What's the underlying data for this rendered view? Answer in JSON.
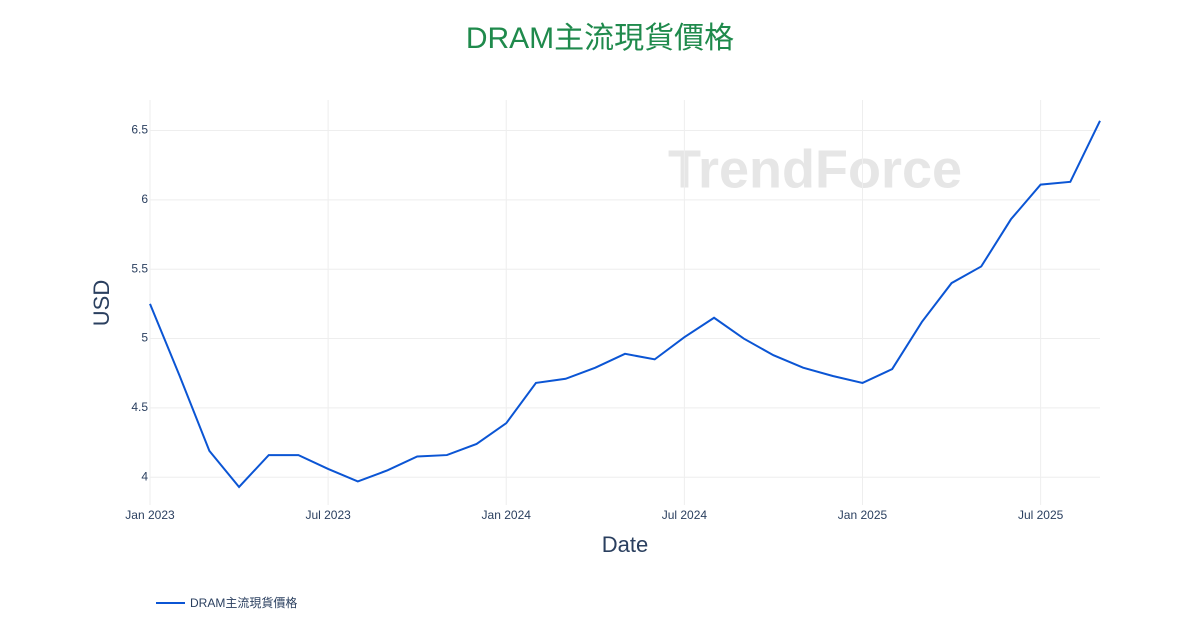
{
  "chart_data": {
    "type": "line",
    "title": "DRAM主流現貨價格",
    "watermark": "TrendForce",
    "x_label": "Date",
    "y_label": "USD",
    "x": [
      "2023-01",
      "2023-02",
      "2023-03",
      "2023-04",
      "2023-05",
      "2023-06",
      "2023-07",
      "2023-08",
      "2023-09",
      "2023-10",
      "2023-11",
      "2023-12",
      "2024-01",
      "2024-02",
      "2024-03",
      "2024-04",
      "2024-05",
      "2024-06",
      "2024-07",
      "2024-08",
      "2024-09",
      "2024-10",
      "2024-11",
      "2024-12",
      "2025-01",
      "2025-02",
      "2025-03",
      "2025-04",
      "2025-05",
      "2025-06",
      "2025-07",
      "2025-08",
      "2025-09"
    ],
    "series": [
      {
        "name": "DRAM主流現貨價格",
        "color": "#0b55d4",
        "values": [
          5.25,
          4.73,
          4.19,
          3.93,
          4.16,
          4.16,
          4.06,
          3.97,
          4.05,
          4.15,
          4.16,
          4.24,
          4.39,
          4.68,
          4.71,
          4.79,
          4.89,
          4.85,
          5.01,
          5.15,
          5.0,
          4.88,
          4.79,
          4.73,
          4.68,
          4.78,
          5.12,
          5.4,
          5.52,
          5.86,
          6.11,
          6.13,
          6.57
        ]
      }
    ],
    "xlim": [
      "2023-01",
      "2025-09"
    ],
    "xticks": [
      {
        "value": "2023-01",
        "label": "Jan 2023"
      },
      {
        "value": "2023-07",
        "label": "Jul 2023"
      },
      {
        "value": "2024-01",
        "label": "Jan 2024"
      },
      {
        "value": "2024-07",
        "label": "Jul 2024"
      },
      {
        "value": "2025-01",
        "label": "Jan 2025"
      },
      {
        "value": "2025-07",
        "label": "Jul 2025"
      }
    ],
    "ylim": [
      3.8,
      6.72
    ],
    "yticks": [
      4,
      4.5,
      5,
      5.5,
      6,
      6.5
    ],
    "grid": true,
    "legend": "bottom-left"
  }
}
